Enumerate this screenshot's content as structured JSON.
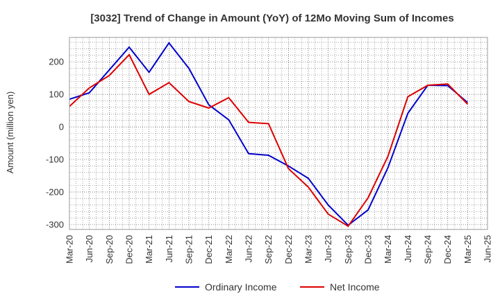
{
  "chart_data": {
    "type": "line",
    "title": "[3032]  Trend of Change in Amount (YoY) of 12Mo Moving Sum of Incomes",
    "xlabel": "",
    "ylabel": "Amount (million yen)",
    "ylim": [
      -315,
      275
    ],
    "yticks": [
      -300,
      -200,
      -100,
      0,
      100,
      200
    ],
    "categories": [
      "Mar-20",
      "Jun-20",
      "Sep-20",
      "Dec-20",
      "Mar-21",
      "Jun-21",
      "Sep-21",
      "Dec-21",
      "Mar-22",
      "Jun-22",
      "Sep-22",
      "Dec-22",
      "Mar-23",
      "Jun-23",
      "Sep-23",
      "Dec-23",
      "Mar-24",
      "Jun-24",
      "Sep-24",
      "Dec-24",
      "Mar-25",
      "Jun-25"
    ],
    "grid": true,
    "legend_position": "bottom",
    "series": [
      {
        "name": "Ordinary Income",
        "color": "#0000cc",
        "values": [
          85,
          105,
          175,
          245,
          168,
          258,
          180,
          68,
          22,
          -82,
          -87,
          -120,
          -158,
          -240,
          -302,
          -255,
          -125,
          42,
          128,
          127,
          75,
          null
        ]
      },
      {
        "name": "Net Income",
        "color": "#dd0000",
        "values": [
          63,
          120,
          158,
          222,
          100,
          136,
          78,
          58,
          90,
          14,
          10,
          -128,
          -185,
          -268,
          -305,
          -218,
          -90,
          93,
          128,
          132,
          70,
          null
        ]
      }
    ]
  }
}
